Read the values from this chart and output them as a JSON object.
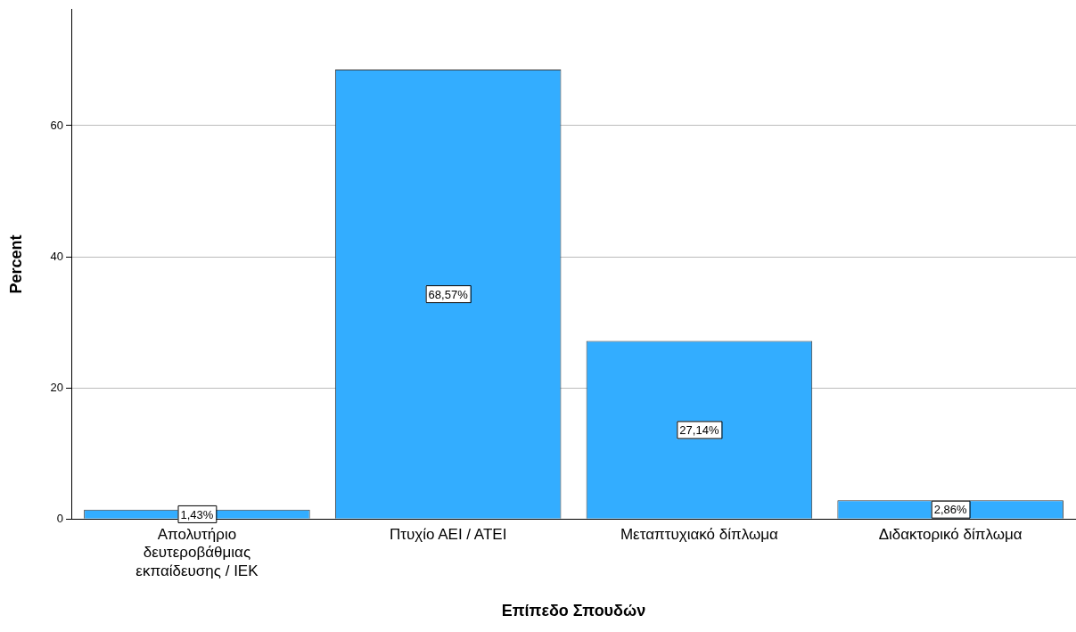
{
  "chart_data": {
    "type": "bar",
    "xlabel": "Επίπεδο Σπουδών",
    "ylabel": "Percent",
    "categories": [
      "Απολυτήριο δευτεροβάθμιας εκπαίδευσης / ΙΕΚ",
      "Πτυχίο ΑΕΙ / ΑΤΕΙ",
      "Μεταπτυχιακό δίπλωμα",
      "Διδακτορικό δίπλωμα"
    ],
    "values": [
      1.43,
      68.57,
      27.14,
      2.86
    ],
    "value_labels": [
      "1,43%",
      "68,57%",
      "27,14%",
      "2,86%"
    ],
    "color": "#33adff",
    "ylim": [
      0,
      77.7
    ],
    "yticks": [
      0,
      20,
      40,
      60
    ],
    "grid": "y",
    "legend": false
  }
}
